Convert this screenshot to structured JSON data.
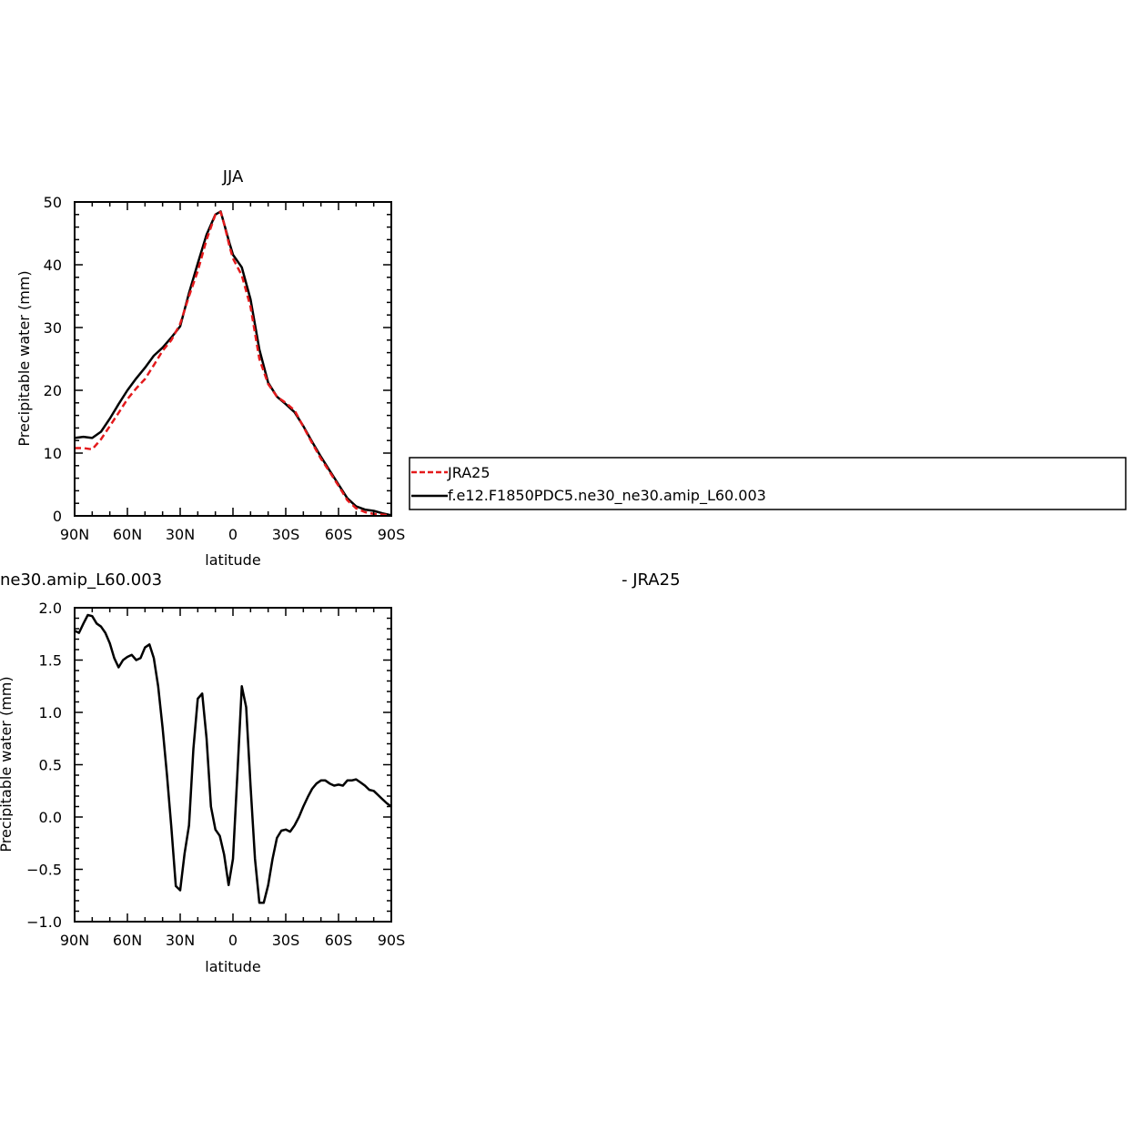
{
  "chart_data": [
    {
      "type": "line",
      "title": "JJA",
      "xlabel": "latitude",
      "ylabel": "Precipitable water (mm)",
      "xlim": [
        90,
        -90
      ],
      "ylim": [
        0,
        50
      ],
      "xticks": [
        {
          "value": 90,
          "label": "90N"
        },
        {
          "value": 60,
          "label": "60N"
        },
        {
          "value": 30,
          "label": "30N"
        },
        {
          "value": 0,
          "label": "0"
        },
        {
          "value": -30,
          "label": "30S"
        },
        {
          "value": -60,
          "label": "60S"
        },
        {
          "value": -90,
          "label": "90S"
        }
      ],
      "yticks": [
        {
          "value": 0,
          "label": "0"
        },
        {
          "value": 10,
          "label": "10"
        },
        {
          "value": 20,
          "label": "20"
        },
        {
          "value": 30,
          "label": "30"
        },
        {
          "value": 40,
          "label": "40"
        },
        {
          "value": 50,
          "label": "50"
        }
      ],
      "legend_position": "right",
      "series": [
        {
          "name": "JRA25",
          "color": "#e41a1c",
          "dashed": true,
          "x": [
            90,
            85,
            80,
            75,
            70,
            65,
            60,
            55,
            50,
            45,
            40,
            35,
            30,
            25,
            20,
            15,
            10,
            7,
            5,
            2,
            0,
            -5,
            -10,
            -15,
            -20,
            -25,
            -30,
            -35,
            -40,
            -45,
            -50,
            -55,
            -60,
            -65,
            -70,
            -75,
            -80,
            -85,
            -90
          ],
          "y": [
            10.8,
            10.8,
            10.6,
            12.2,
            14.3,
            16.4,
            18.6,
            20.3,
            21.8,
            24.0,
            26.3,
            28.0,
            30.6,
            35.0,
            39.0,
            44.0,
            48.0,
            48.4,
            46.5,
            43.0,
            41.0,
            38.3,
            33.3,
            25.0,
            21.0,
            19.0,
            18.0,
            16.8,
            14.2,
            11.6,
            9.1,
            7.0,
            4.8,
            2.5,
            1.2,
            0.6,
            0.3,
            0.2,
            0.1
          ]
        },
        {
          "name": "f.e12.F1850PDC5.ne30_ne30.amip_L60.003",
          "color": "#000000",
          "dashed": false,
          "x": [
            90,
            85,
            80,
            75,
            70,
            65,
            60,
            55,
            50,
            45,
            40,
            35,
            30,
            25,
            20,
            15,
            10,
            7,
            5,
            2,
            0,
            -5,
            -10,
            -15,
            -20,
            -25,
            -30,
            -35,
            -40,
            -45,
            -50,
            -55,
            -60,
            -65,
            -70,
            -75,
            -80,
            -85,
            -90
          ],
          "y": [
            12.4,
            12.6,
            12.4,
            13.4,
            15.5,
            17.8,
            20.0,
            21.9,
            23.6,
            25.5,
            26.8,
            28.4,
            30.2,
            35.5,
            40.2,
            44.8,
            48.0,
            48.5,
            46.5,
            43.5,
            41.6,
            39.6,
            34.5,
            26.5,
            21.2,
            19.0,
            17.8,
            16.5,
            14.3,
            11.8,
            9.4,
            7.2,
            5.0,
            2.8,
            1.5,
            1.0,
            0.8,
            0.4,
            0.1
          ]
        }
      ]
    },
    {
      "type": "line",
      "title": "ne30.amip_L60.003",
      "title_right": "- JRA25",
      "xlabel": "latitude",
      "ylabel": "Precipitable water (mm)",
      "xlim": [
        90,
        -90
      ],
      "ylim": [
        -1.0,
        2.0
      ],
      "xticks": [
        {
          "value": 90,
          "label": "90N"
        },
        {
          "value": 60,
          "label": "60N"
        },
        {
          "value": 30,
          "label": "30N"
        },
        {
          "value": 0,
          "label": "0"
        },
        {
          "value": -30,
          "label": "30S"
        },
        {
          "value": -60,
          "label": "60S"
        },
        {
          "value": -90,
          "label": "90S"
        }
      ],
      "yticks": [
        {
          "value": -1.0,
          "label": "−1.0"
        },
        {
          "value": -0.5,
          "label": "−0.5"
        },
        {
          "value": 0.0,
          "label": "0.0"
        },
        {
          "value": 0.5,
          "label": "0.5"
        },
        {
          "value": 1.0,
          "label": "1.0"
        },
        {
          "value": 1.5,
          "label": "1.5"
        },
        {
          "value": 2.0,
          "label": "2.0"
        }
      ],
      "series": [
        {
          "color": "#000000",
          "dashed": false,
          "x": [
            90,
            87.5,
            85,
            82.5,
            80,
            77.5,
            75,
            72.5,
            70,
            67.5,
            65,
            62.5,
            60,
            57.5,
            55,
            52.5,
            50,
            47.5,
            45,
            42.5,
            40,
            37.5,
            35,
            32.5,
            30,
            27.5,
            25,
            22.5,
            20,
            17.5,
            15,
            12.5,
            10,
            7.5,
            5,
            2.5,
            0,
            -2.5,
            -5,
            -7.5,
            -10,
            -12.5,
            -15,
            -17.5,
            -20,
            -22.5,
            -25,
            -27.5,
            -30,
            -32.5,
            -35,
            -37.5,
            -40,
            -42.5,
            -45,
            -47.5,
            -50,
            -52.5,
            -55,
            -57.5,
            -60,
            -62.5,
            -65,
            -67.5,
            -70,
            -72.5,
            -75,
            -77.5,
            -80,
            -82.5,
            -85,
            -87.5,
            -90
          ],
          "y": [
            1.78,
            1.76,
            1.85,
            1.93,
            1.92,
            1.85,
            1.82,
            1.76,
            1.66,
            1.52,
            1.43,
            1.5,
            1.53,
            1.55,
            1.5,
            1.52,
            1.62,
            1.65,
            1.52,
            1.25,
            0.85,
            0.4,
            -0.1,
            -0.66,
            -0.7,
            -0.35,
            -0.08,
            0.65,
            1.13,
            1.18,
            0.75,
            0.1,
            -0.12,
            -0.18,
            -0.36,
            -0.65,
            -0.4,
            0.4,
            1.25,
            1.05,
            0.3,
            -0.4,
            -0.82,
            -0.82,
            -0.65,
            -0.4,
            -0.2,
            -0.13,
            -0.12,
            -0.14,
            -0.08,
            0.0,
            0.1,
            0.19,
            0.27,
            0.32,
            0.35,
            0.35,
            0.32,
            0.3,
            0.31,
            0.3,
            0.35,
            0.35,
            0.36,
            0.33,
            0.3,
            0.26,
            0.25,
            0.21,
            0.17,
            0.13,
            0.1
          ]
        }
      ]
    }
  ]
}
